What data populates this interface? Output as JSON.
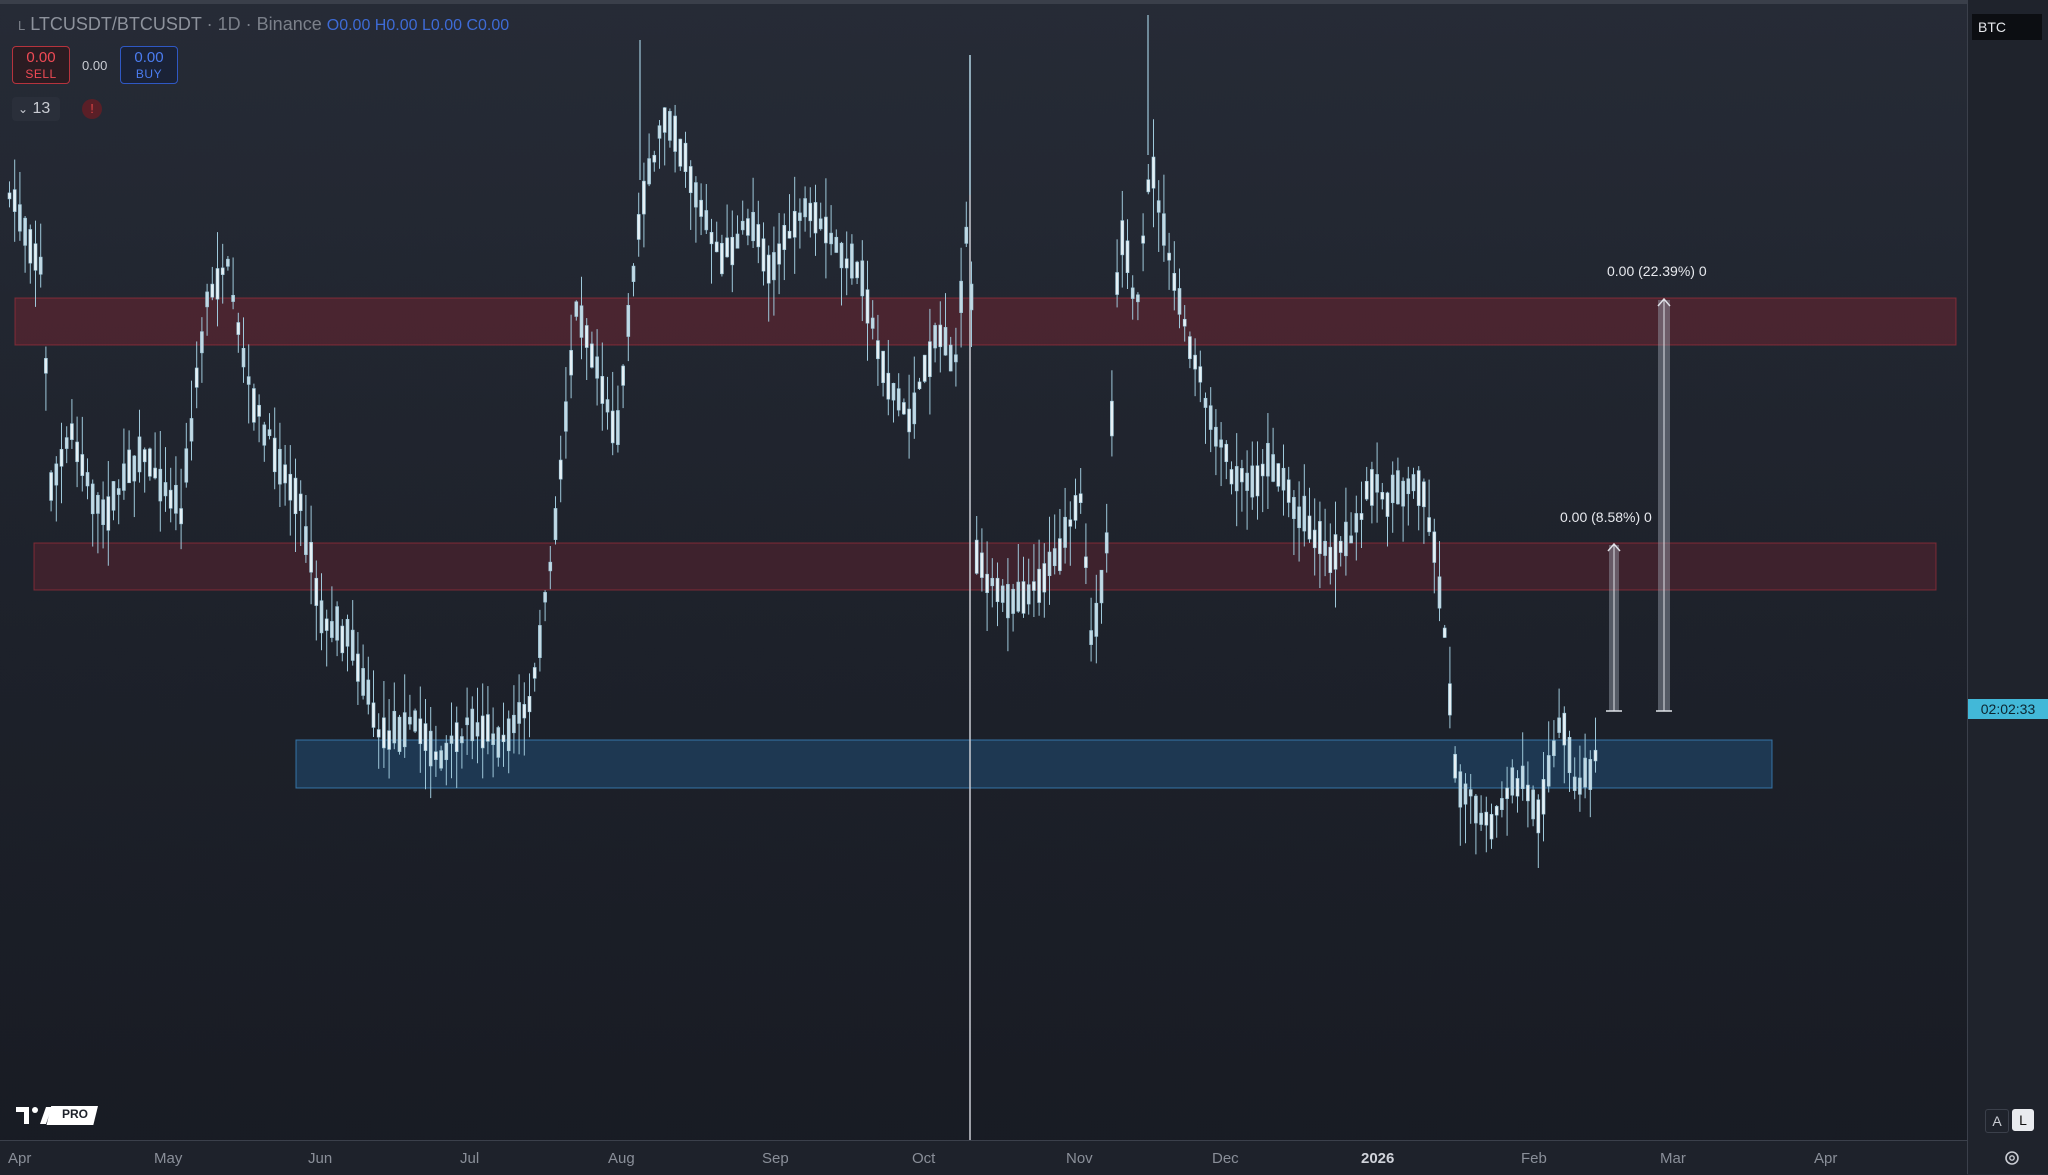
{
  "legend": {
    "prefix": "L",
    "symbol": "LTCUSDT/BTCUSDT",
    "interval": "1D",
    "exchange": "Binance",
    "open_label": "O",
    "open": "0.00",
    "high_label": "H",
    "high": "0.00",
    "low_label": "L",
    "low": "0.00",
    "close_label": "C",
    "close": "0.00"
  },
  "trade": {
    "sell_price": "0.00",
    "sell_label": "SELL",
    "spread": "0.00",
    "buy_price": "0.00",
    "buy_label": "BUY"
  },
  "indicators": {
    "count": "13",
    "alert_glyph": "!"
  },
  "price_axis": {
    "currency_label": "BTC",
    "countdown": "02:02:33"
  },
  "time_axis": {
    "labels": [
      "Apr",
      "May",
      "Jun",
      "Jul",
      "Aug",
      "Sep",
      "Oct",
      "Nov",
      "Dec",
      "2026",
      "Feb",
      "Mar",
      "Apr"
    ],
    "bold_label": "2026"
  },
  "measurements": [
    {
      "label": "0.00 (22.39%) 0"
    },
    {
      "label": "0.00 (8.58%) 0"
    }
  ],
  "zones": [
    {
      "name": "upper-resistance",
      "color": "#b2303c"
    },
    {
      "name": "mid-resistance",
      "color": "#b2303c"
    },
    {
      "name": "support",
      "color": "#2e6fa3"
    }
  ],
  "brand": {
    "logo_text": "PRO"
  },
  "mode_buttons": {
    "auto": "A",
    "log": "L"
  },
  "colors": {
    "candle": "#e6f0f5",
    "wick": "#9ec8da",
    "sell": "#ef4a55",
    "buy": "#4b7cf0",
    "countdown_bg": "#42b8d8"
  }
}
